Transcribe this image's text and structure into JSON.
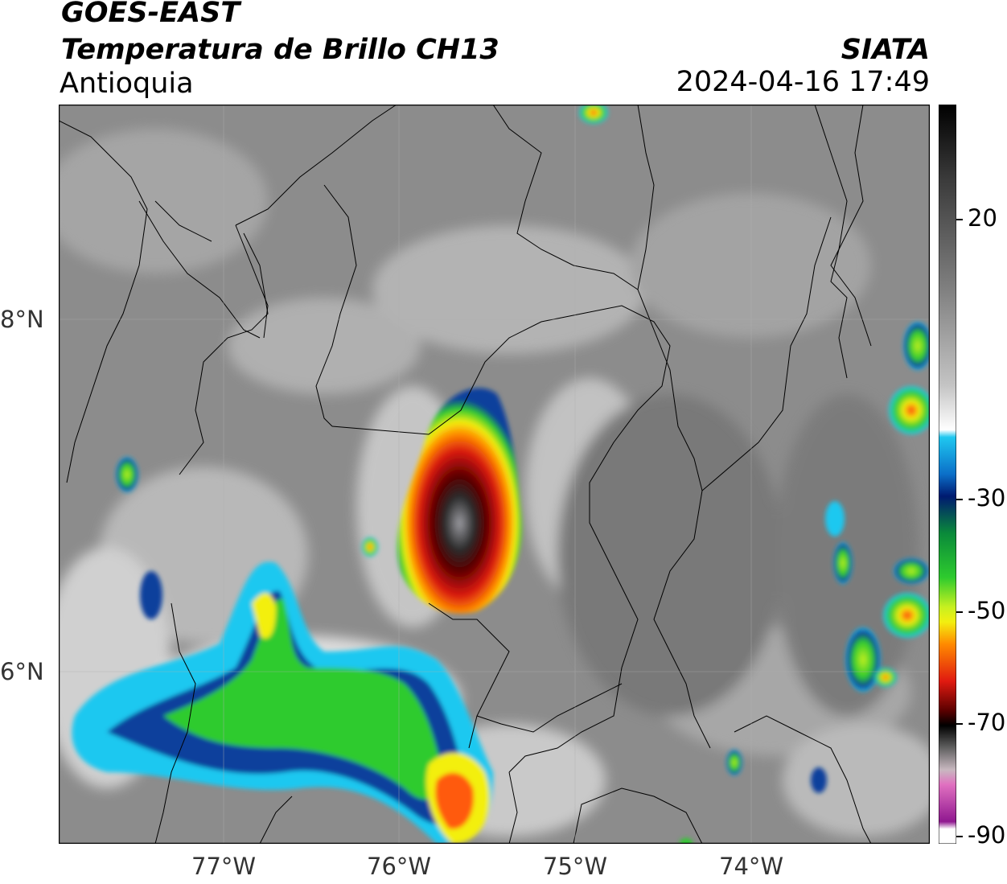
{
  "header": {
    "satellite": "GOES-EAST",
    "product": "Temperatura de Brillo CH13",
    "region": "Antioquia",
    "agency": "SIATA",
    "datetime": "2024-04-16 17:49"
  },
  "map": {
    "lat_ticks": [
      "8°N",
      "6°N"
    ],
    "lon_ticks": [
      "77°W",
      "76°W",
      "75°W",
      "74°W"
    ],
    "colors": {
      "warm_gray": "#8a8a8a",
      "cloud_white": "#f2f2f2",
      "cyan": "#1fc8f0",
      "blue": "#0b3f9c",
      "green": "#2ecb2e",
      "yellow": "#f3ef10",
      "orange": "#ff8a00",
      "red": "#e01a10",
      "dark_red": "#5a0000",
      "core_gray": "#7a7a80"
    }
  },
  "colorbar": {
    "ticks": [
      "20",
      "-30",
      "-50",
      "-70",
      "-90"
    ]
  }
}
